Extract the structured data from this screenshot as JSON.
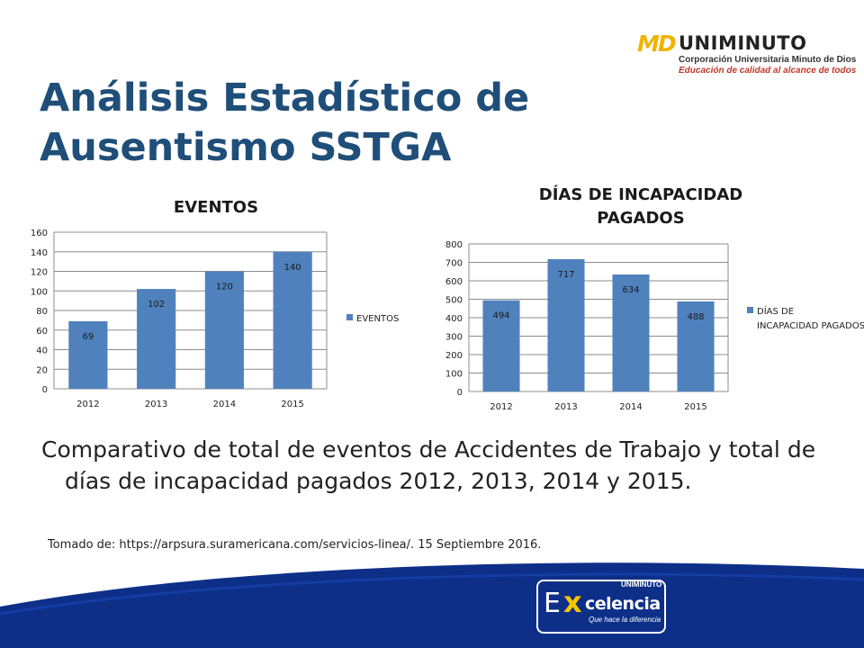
{
  "slide": {
    "title": "Análisis Estadístico de Ausentismo SSTGA",
    "body": "Comparativo de total de eventos de Accidentes de Trabajo y total de días de incapacidad pagados 2012, 2013, 2014 y 2015.",
    "source": "Tomado de: https://arpsura.suramericana.com/servicios-linea/.  15 Septiembre 2016."
  },
  "logo": {
    "mark": "MD",
    "brand": "UNIMINUTO",
    "line1": "Corporación Universitaria Minuto de Dios",
    "line2": "Educación de calidad al alcance de todos"
  },
  "badge": {
    "top": "UNIMINUTO",
    "initial": "E",
    "x": "x",
    "word": "celencia",
    "tagline": "Que hace la diferencia"
  },
  "colors": {
    "bar": "#4f81bd",
    "title": "#1f4e79",
    "band": "#0d2f88"
  },
  "chart_data": [
    {
      "type": "bar",
      "title": "EVENTOS",
      "categories": [
        "2012",
        "2013",
        "2014",
        "2015"
      ],
      "series": [
        {
          "name": "EVENTOS",
          "values": [
            69,
            102,
            120,
            140
          ]
        }
      ],
      "ylim": [
        0,
        160
      ],
      "yticks": [
        0,
        20,
        40,
        60,
        80,
        100,
        120,
        140,
        160
      ],
      "grid": true,
      "legend": "right"
    },
    {
      "type": "bar",
      "title": "DÍAS DE INCAPACIDAD PAGADOS",
      "categories": [
        "2012",
        "2013",
        "2014",
        "2015"
      ],
      "series": [
        {
          "name": "DÍAS DE INCAPACIDAD PAGADOS",
          "values": [
            494,
            717,
            634,
            488
          ]
        }
      ],
      "ylim": [
        0,
        800
      ],
      "yticks": [
        0,
        100,
        200,
        300,
        400,
        500,
        600,
        700,
        800
      ],
      "grid": true,
      "legend": "right"
    }
  ]
}
